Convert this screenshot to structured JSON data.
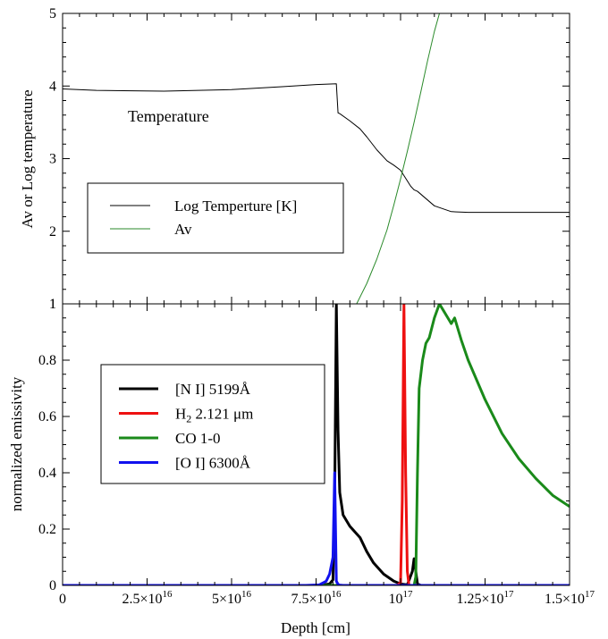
{
  "chart_data": [
    {
      "type": "line",
      "panel": "top",
      "ylabel": "Av or Log temperature",
      "ylim": [
        1,
        5
      ],
      "xlim": [
        0,
        1.5e+17
      ],
      "yticks": [
        "1",
        "2",
        "3",
        "4",
        "5"
      ],
      "annotation": "Temperature",
      "legend": {
        "placement": "lower-left",
        "entries": [
          "Log Temperture [K]",
          "Av"
        ]
      },
      "series": [
        {
          "name": "Log Temperture [K]",
          "color": "#000000",
          "x": [
            0,
            1e+16,
            3e+16,
            5e+16,
            6.5e+16,
            7.5e+16,
            8.1e+16,
            8.15e+16,
            8.2e+16,
            8.5e+16,
            8.8e+16,
            9e+16,
            9.3e+16,
            9.6e+16,
            9.8e+16,
            1e+17,
            1.03e+17,
            1.04e+17,
            1.05e+17,
            1.07e+17,
            1.1e+17,
            1.15e+17,
            1.2e+17,
            1.3e+17,
            1.4e+17,
            1.5e+17
          ],
          "y": [
            3.96,
            3.94,
            3.93,
            3.95,
            3.99,
            4.02,
            4.03,
            3.63,
            3.62,
            3.52,
            3.41,
            3.3,
            3.12,
            2.97,
            2.91,
            2.84,
            2.62,
            2.57,
            2.55,
            2.47,
            2.35,
            2.27,
            2.26,
            2.26,
            2.26,
            2.26
          ]
        },
        {
          "name": "Av",
          "color": "#2a8a2a",
          "x": [
            8.7e+16,
            9e+16,
            9.3e+16,
            9.6e+16,
            9.8e+16,
            1e+17,
            1.02e+17,
            1.04e+17,
            1.06e+17,
            1.08e+17,
            1.1e+17,
            1.115e+17,
            1.13e+17
          ],
          "y": [
            1.0,
            1.28,
            1.62,
            2.02,
            2.36,
            2.72,
            3.1,
            3.5,
            3.92,
            4.35,
            4.75,
            5.0,
            5.3
          ]
        }
      ]
    },
    {
      "type": "line",
      "panel": "bottom",
      "xlabel": "Depth [cm]",
      "ylabel": "normalized emissivity",
      "ylim": [
        0,
        1
      ],
      "xlim": [
        0,
        1.5e+17
      ],
      "yticks": [
        "0",
        "0.2",
        "0.4",
        "0.6",
        "0.8",
        "1"
      ],
      "xticks": [
        {
          "value": 0,
          "mant": "0",
          "exp": ""
        },
        {
          "value": 2.5e+16,
          "mant": "2.5×10",
          "exp": "16"
        },
        {
          "value": 5e+16,
          "mant": "5×10",
          "exp": "16"
        },
        {
          "value": 7.5e+16,
          "mant": "7.5×10",
          "exp": "16"
        },
        {
          "value": 1e+17,
          "mant": "10",
          "exp": "17"
        },
        {
          "value": 1.25e+17,
          "mant": "1.25×10",
          "exp": "17"
        },
        {
          "value": 1.5e+17,
          "mant": "1.5×10",
          "exp": "17"
        }
      ],
      "legend": {
        "placement": "middle-left",
        "entries": [
          {
            "text": "[N I] 5199Å",
            "sub": "",
            "rest": ""
          },
          {
            "text": "H",
            "sub": "2",
            "rest": " 2.121 μm"
          },
          {
            "text": "CO 1-0",
            "sub": "",
            "rest": ""
          },
          {
            "text": "[O I] 6300Å",
            "sub": "",
            "rest": ""
          }
        ]
      },
      "series": [
        {
          "name": "[N I] 5199Å",
          "color": "#000000",
          "x": [
            0,
            6e+16,
            7.6e+16,
            7.9e+16,
            8e+16,
            8.05e+16,
            8.1e+16,
            8.15e+16,
            8.2e+16,
            8.3e+16,
            8.5e+16,
            8.8e+16,
            9e+16,
            9.2e+16,
            9.5e+16,
            9.8e+16,
            1e+17,
            1.02e+17,
            1.035e+17,
            1.04e+17,
            1.045e+17,
            1.05e+17,
            1.06e+17,
            1.5e+17
          ],
          "y": [
            0,
            0,
            0,
            0.005,
            0.02,
            0.3,
            1.0,
            0.55,
            0.33,
            0.25,
            0.21,
            0.17,
            0.12,
            0.08,
            0.04,
            0.015,
            0.005,
            0.002,
            0.05,
            0.095,
            0.05,
            0.005,
            0,
            0
          ]
        },
        {
          "name": "H2 2.121 μm",
          "color": "#ee1111",
          "x": [
            0,
            9.9e+16,
            1e+17,
            1.005e+17,
            1.01e+17,
            1.015e+17,
            1.02e+17,
            1.025e+17,
            1.5e+17
          ],
          "y": [
            0,
            0,
            0.01,
            0.3,
            1.0,
            0.4,
            0.05,
            0,
            0
          ]
        },
        {
          "name": "CO 1-0",
          "color": "#1a8a1a",
          "x": [
            0,
            1.04e+17,
            1.045e+17,
            1.05e+17,
            1.055e+17,
            1.065e+17,
            1.075e+17,
            1.085e+17,
            1.1e+17,
            1.115e+17,
            1.125e+17,
            1.14e+17,
            1.15e+17,
            1.16e+17,
            1.18e+17,
            1.2e+17,
            1.25e+17,
            1.3e+17,
            1.35e+17,
            1.4e+17,
            1.45e+17,
            1.5e+17
          ],
          "y": [
            0,
            0,
            0.03,
            0.4,
            0.7,
            0.8,
            0.86,
            0.88,
            0.95,
            1.0,
            0.98,
            0.95,
            0.93,
            0.95,
            0.87,
            0.8,
            0.66,
            0.54,
            0.45,
            0.38,
            0.32,
            0.28
          ]
        },
        {
          "name": "[O I] 6300Å",
          "color": "#1111ee",
          "x": [
            0,
            6e+16,
            7.2e+16,
            7.6e+16,
            7.8e+16,
            7.9e+16,
            8e+16,
            8.05e+16,
            8.1e+16,
            8.15e+16,
            8.2e+16,
            8.3e+16,
            1.5e+17
          ],
          "y": [
            0,
            0,
            0,
            0.002,
            0.015,
            0.04,
            0.1,
            0.4,
            0.015,
            0.004,
            0.001,
            0,
            0
          ]
        }
      ]
    }
  ]
}
